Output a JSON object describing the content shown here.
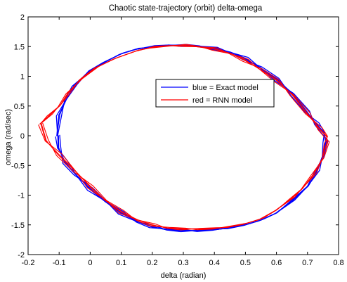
{
  "chart_data": {
    "type": "line",
    "title": "Chaotic state-trajectory (orbit) delta-omega",
    "xlabel": "delta (radian)",
    "ylabel": "omega (rad/sec)",
    "xlim": [
      -0.2,
      0.8
    ],
    "ylim": [
      -2,
      2
    ],
    "xticks": [
      "-0.2",
      "-0.1",
      "0",
      "0.1",
      "0.2",
      "0.3",
      "0.4",
      "0.5",
      "0.6",
      "0.7",
      "0.8"
    ],
    "yticks": [
      "-2",
      "-1.5",
      "-1",
      "-0.5",
      "0",
      "0.5",
      "1",
      "1.5",
      "2"
    ],
    "grid": false,
    "legend_position": "upper-middle-right",
    "series": [
      {
        "name": "blue = Exact model",
        "color": "#0000ff",
        "x": [
          -0.105,
          -0.1,
          -0.08,
          -0.05,
          0.0,
          0.05,
          0.1,
          0.15,
          0.2,
          0.25,
          0.3,
          0.35,
          0.4,
          0.45,
          0.5,
          0.55,
          0.6,
          0.65,
          0.7,
          0.73,
          0.75,
          0.758,
          0.75,
          0.73,
          0.7,
          0.65,
          0.6,
          0.55,
          0.5,
          0.45,
          0.4,
          0.35,
          0.3,
          0.25,
          0.2,
          0.15,
          0.1,
          0.05,
          0.0,
          -0.05,
          -0.08,
          -0.1,
          -0.105
        ],
        "y": [
          0.0,
          0.35,
          0.6,
          0.85,
          1.1,
          1.25,
          1.38,
          1.46,
          1.5,
          1.52,
          1.52,
          1.51,
          1.47,
          1.4,
          1.3,
          1.15,
          0.95,
          0.7,
          0.4,
          0.2,
          0.05,
          -0.1,
          -0.35,
          -0.6,
          -0.85,
          -1.1,
          -1.3,
          -1.42,
          -1.5,
          -1.55,
          -1.58,
          -1.6,
          -1.6,
          -1.58,
          -1.53,
          -1.45,
          -1.3,
          -1.1,
          -0.9,
          -0.65,
          -0.45,
          -0.2,
          0.0
        ]
      },
      {
        "name": "red = RNN model",
        "color": "#ff0000",
        "x": [
          -0.16,
          -0.13,
          -0.1,
          -0.07,
          -0.03,
          0.02,
          0.08,
          0.15,
          0.2,
          0.25,
          0.3,
          0.35,
          0.4,
          0.45,
          0.5,
          0.55,
          0.6,
          0.65,
          0.7,
          0.74,
          0.76,
          0.762,
          0.75,
          0.72,
          0.68,
          0.65,
          0.6,
          0.55,
          0.5,
          0.45,
          0.4,
          0.35,
          0.3,
          0.25,
          0.2,
          0.15,
          0.1,
          0.05,
          0.0,
          -0.05,
          -0.1,
          -0.14,
          -0.16
        ],
        "y": [
          0.2,
          0.35,
          0.5,
          0.72,
          0.95,
          1.15,
          1.3,
          1.43,
          1.49,
          1.51,
          1.52,
          1.5,
          1.46,
          1.38,
          1.27,
          1.12,
          0.93,
          0.68,
          0.38,
          0.12,
          -0.02,
          -0.12,
          -0.38,
          -0.65,
          -0.9,
          -1.05,
          -1.25,
          -1.4,
          -1.48,
          -1.53,
          -1.56,
          -1.57,
          -1.57,
          -1.55,
          -1.5,
          -1.42,
          -1.28,
          -1.08,
          -0.86,
          -0.6,
          -0.32,
          -0.08,
          0.2
        ]
      }
    ]
  }
}
